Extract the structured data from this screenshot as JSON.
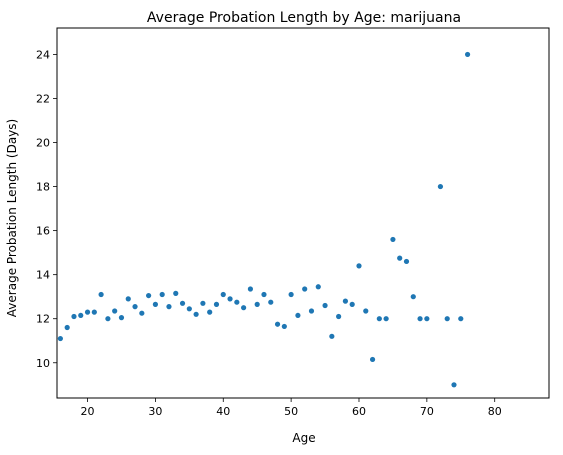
{
  "chart_data": {
    "type": "scatter",
    "title": "Average Probation Length by Age: marijuana",
    "xlabel": "Age",
    "ylabel": "Average Probation Length (Days)",
    "xlim": [
      15.5,
      88
    ],
    "ylim": [
      8.4,
      25.2
    ],
    "xticks": [
      20,
      30,
      40,
      50,
      60,
      70,
      80
    ],
    "yticks": [
      10,
      12,
      14,
      16,
      18,
      20,
      22,
      24
    ],
    "grid": false,
    "marker_color": "#1f77b4",
    "points": [
      {
        "x": 16,
        "y": 11.1
      },
      {
        "x": 17,
        "y": 11.6
      },
      {
        "x": 18,
        "y": 12.1
      },
      {
        "x": 19,
        "y": 12.15
      },
      {
        "x": 20,
        "y": 12.3
      },
      {
        "x": 21,
        "y": 12.3
      },
      {
        "x": 22,
        "y": 13.1
      },
      {
        "x": 23,
        "y": 12.0
      },
      {
        "x": 24,
        "y": 12.35
      },
      {
        "x": 25,
        "y": 12.05
      },
      {
        "x": 26,
        "y": 12.9
      },
      {
        "x": 27,
        "y": 12.55
      },
      {
        "x": 28,
        "y": 12.25
      },
      {
        "x": 29,
        "y": 13.05
      },
      {
        "x": 30,
        "y": 12.65
      },
      {
        "x": 31,
        "y": 13.1
      },
      {
        "x": 32,
        "y": 12.55
      },
      {
        "x": 33,
        "y": 13.15
      },
      {
        "x": 34,
        "y": 12.7
      },
      {
        "x": 35,
        "y": 12.45
      },
      {
        "x": 36,
        "y": 12.2
      },
      {
        "x": 37,
        "y": 12.7
      },
      {
        "x": 38,
        "y": 12.3
      },
      {
        "x": 39,
        "y": 12.65
      },
      {
        "x": 40,
        "y": 13.1
      },
      {
        "x": 41,
        "y": 12.9
      },
      {
        "x": 42,
        "y": 12.75
      },
      {
        "x": 43,
        "y": 12.5
      },
      {
        "x": 44,
        "y": 13.35
      },
      {
        "x": 45,
        "y": 12.65
      },
      {
        "x": 46,
        "y": 13.1
      },
      {
        "x": 47,
        "y": 12.75
      },
      {
        "x": 48,
        "y": 11.75
      },
      {
        "x": 49,
        "y": 11.65
      },
      {
        "x": 50,
        "y": 13.1
      },
      {
        "x": 51,
        "y": 12.15
      },
      {
        "x": 52,
        "y": 13.35
      },
      {
        "x": 53,
        "y": 12.35
      },
      {
        "x": 54,
        "y": 13.45
      },
      {
        "x": 55,
        "y": 12.6
      },
      {
        "x": 56,
        "y": 11.2
      },
      {
        "x": 57,
        "y": 12.1
      },
      {
        "x": 58,
        "y": 12.8
      },
      {
        "x": 59,
        "y": 12.65
      },
      {
        "x": 60,
        "y": 14.4
      },
      {
        "x": 61,
        "y": 12.35
      },
      {
        "x": 62,
        "y": 10.15
      },
      {
        "x": 63,
        "y": 12.0
      },
      {
        "x": 64,
        "y": 12.0
      },
      {
        "x": 65,
        "y": 15.6
      },
      {
        "x": 66,
        "y": 14.75
      },
      {
        "x": 67,
        "y": 14.6
      },
      {
        "x": 68,
        "y": 13.0
      },
      {
        "x": 69,
        "y": 12.0
      },
      {
        "x": 70,
        "y": 12.0
      },
      {
        "x": 72,
        "y": 18.0
      },
      {
        "x": 73,
        "y": 12.0
      },
      {
        "x": 74,
        "y": 9.0
      },
      {
        "x": 75,
        "y": 12.0
      },
      {
        "x": 76,
        "y": 24.0
      }
    ]
  }
}
